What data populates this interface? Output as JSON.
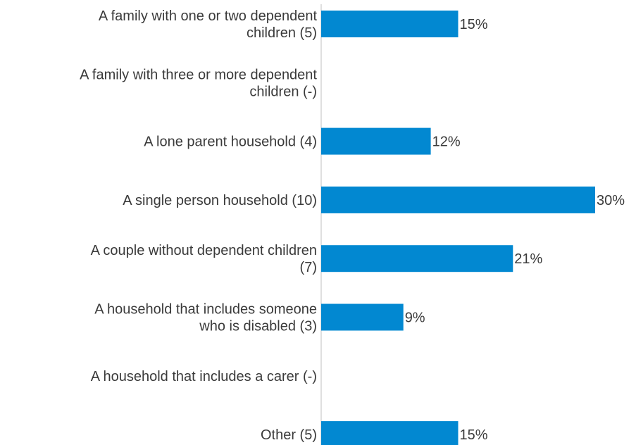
{
  "chart_data": {
    "type": "bar",
    "orientation": "horizontal",
    "categories": [
      [
        "A family with one or two dependent",
        "children (5)"
      ],
      [
        "A family with three or more dependent",
        "children (-)"
      ],
      [
        "A lone parent household (4)"
      ],
      [
        "A single person household (10)"
      ],
      [
        "A couple without dependent children",
        "(7)"
      ],
      [
        "A household that includes someone",
        "who is disabled (3)"
      ],
      [
        "A household that includes a carer (-)"
      ],
      [
        "Other (5)"
      ]
    ],
    "values": [
      15,
      null,
      12,
      30,
      21,
      9,
      null,
      15
    ],
    "value_labels": [
      "15%",
      "",
      "12%",
      "30%",
      "21%",
      "9%",
      "",
      "15%"
    ],
    "unit": "%",
    "xlim": [
      0,
      30
    ],
    "bar_color": "#0288d1",
    "grid": false,
    "legend": "none"
  }
}
